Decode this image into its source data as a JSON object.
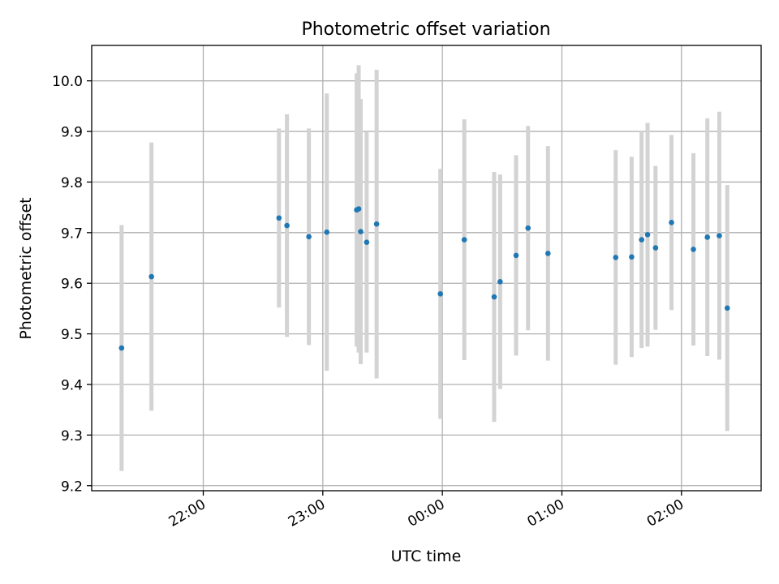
{
  "chart_data": {
    "type": "scatter",
    "title": "Photometric offset variation",
    "xlabel": "UTC time",
    "ylabel": "Photometric offset",
    "xlim": [
      "2024-01-01T21:04:00",
      "2024-01-02T02:40:00"
    ],
    "ylim": [
      9.19,
      10.07
    ],
    "yticks": [
      9.2,
      9.3,
      9.4,
      9.5,
      9.6,
      9.7,
      9.8,
      9.9,
      10.0
    ],
    "ytick_labels": [
      "9.2",
      "9.3",
      "9.4",
      "9.5",
      "9.6",
      "9.7",
      "9.8",
      "9.9",
      "10.0"
    ],
    "xticks": [
      "2024-01-01T22:00:00",
      "2024-01-01T23:00:00",
      "2024-01-02T00:00:00",
      "2024-01-02T01:00:00",
      "2024-01-02T02:00:00"
    ],
    "xtick_labels": [
      "22:00",
      "23:00",
      "00:00",
      "01:00",
      "02:00"
    ],
    "grid": true,
    "point_color": "#1f77b4",
    "errorbar_color": "#d3d3d3",
    "points": [
      {
        "x": "2024-01-01T21:19:00",
        "y": 9.472,
        "yerr": 0.243
      },
      {
        "x": "2024-01-01T21:34:00",
        "y": 9.613,
        "yerr": 0.265
      },
      {
        "x": "2024-01-01T22:38:00",
        "y": 9.729,
        "yerr": 0.177
      },
      {
        "x": "2024-01-01T22:42:00",
        "y": 9.714,
        "yerr": 0.22
      },
      {
        "x": "2024-01-01T22:53:00",
        "y": 9.692,
        "yerr": 0.214
      },
      {
        "x": "2024-01-01T23:02:00",
        "y": 9.701,
        "yerr": 0.274
      },
      {
        "x": "2024-01-01T23:17:00",
        "y": 9.745,
        "yerr": 0.27
      },
      {
        "x": "2024-01-01T23:18:00",
        "y": 9.747,
        "yerr": 0.284
      },
      {
        "x": "2024-01-01T23:19:00",
        "y": 9.702,
        "yerr": 0.262
      },
      {
        "x": "2024-01-01T23:22:00",
        "y": 9.681,
        "yerr": 0.218
      },
      {
        "x": "2024-01-01T23:27:00",
        "y": 9.717,
        "yerr": 0.305
      },
      {
        "x": "2024-01-01T23:59:00",
        "y": 9.579,
        "yerr": 0.247
      },
      {
        "x": "2024-01-02T00:11:00",
        "y": 9.686,
        "yerr": 0.238
      },
      {
        "x": "2024-01-02T00:26:00",
        "y": 9.573,
        "yerr": 0.247
      },
      {
        "x": "2024-01-02T00:29:00",
        "y": 9.603,
        "yerr": 0.212
      },
      {
        "x": "2024-01-02T00:37:00",
        "y": 9.655,
        "yerr": 0.198
      },
      {
        "x": "2024-01-02T00:43:00",
        "y": 9.709,
        "yerr": 0.202
      },
      {
        "x": "2024-01-02T00:53:00",
        "y": 9.659,
        "yerr": 0.212
      },
      {
        "x": "2024-01-02T01:27:00",
        "y": 9.651,
        "yerr": 0.212
      },
      {
        "x": "2024-01-02T01:35:00",
        "y": 9.652,
        "yerr": 0.198
      },
      {
        "x": "2024-01-02T01:40:00",
        "y": 9.686,
        "yerr": 0.214
      },
      {
        "x": "2024-01-02T01:43:00",
        "y": 9.696,
        "yerr": 0.221
      },
      {
        "x": "2024-01-02T01:47:00",
        "y": 9.67,
        "yerr": 0.162
      },
      {
        "x": "2024-01-02T01:55:00",
        "y": 9.72,
        "yerr": 0.173
      },
      {
        "x": "2024-01-02T02:06:00",
        "y": 9.667,
        "yerr": 0.19
      },
      {
        "x": "2024-01-02T02:13:00",
        "y": 9.691,
        "yerr": 0.235
      },
      {
        "x": "2024-01-02T02:19:00",
        "y": 9.694,
        "yerr": 0.245
      },
      {
        "x": "2024-01-02T02:23:00",
        "y": 9.551,
        "yerr": 0.243
      }
    ]
  }
}
